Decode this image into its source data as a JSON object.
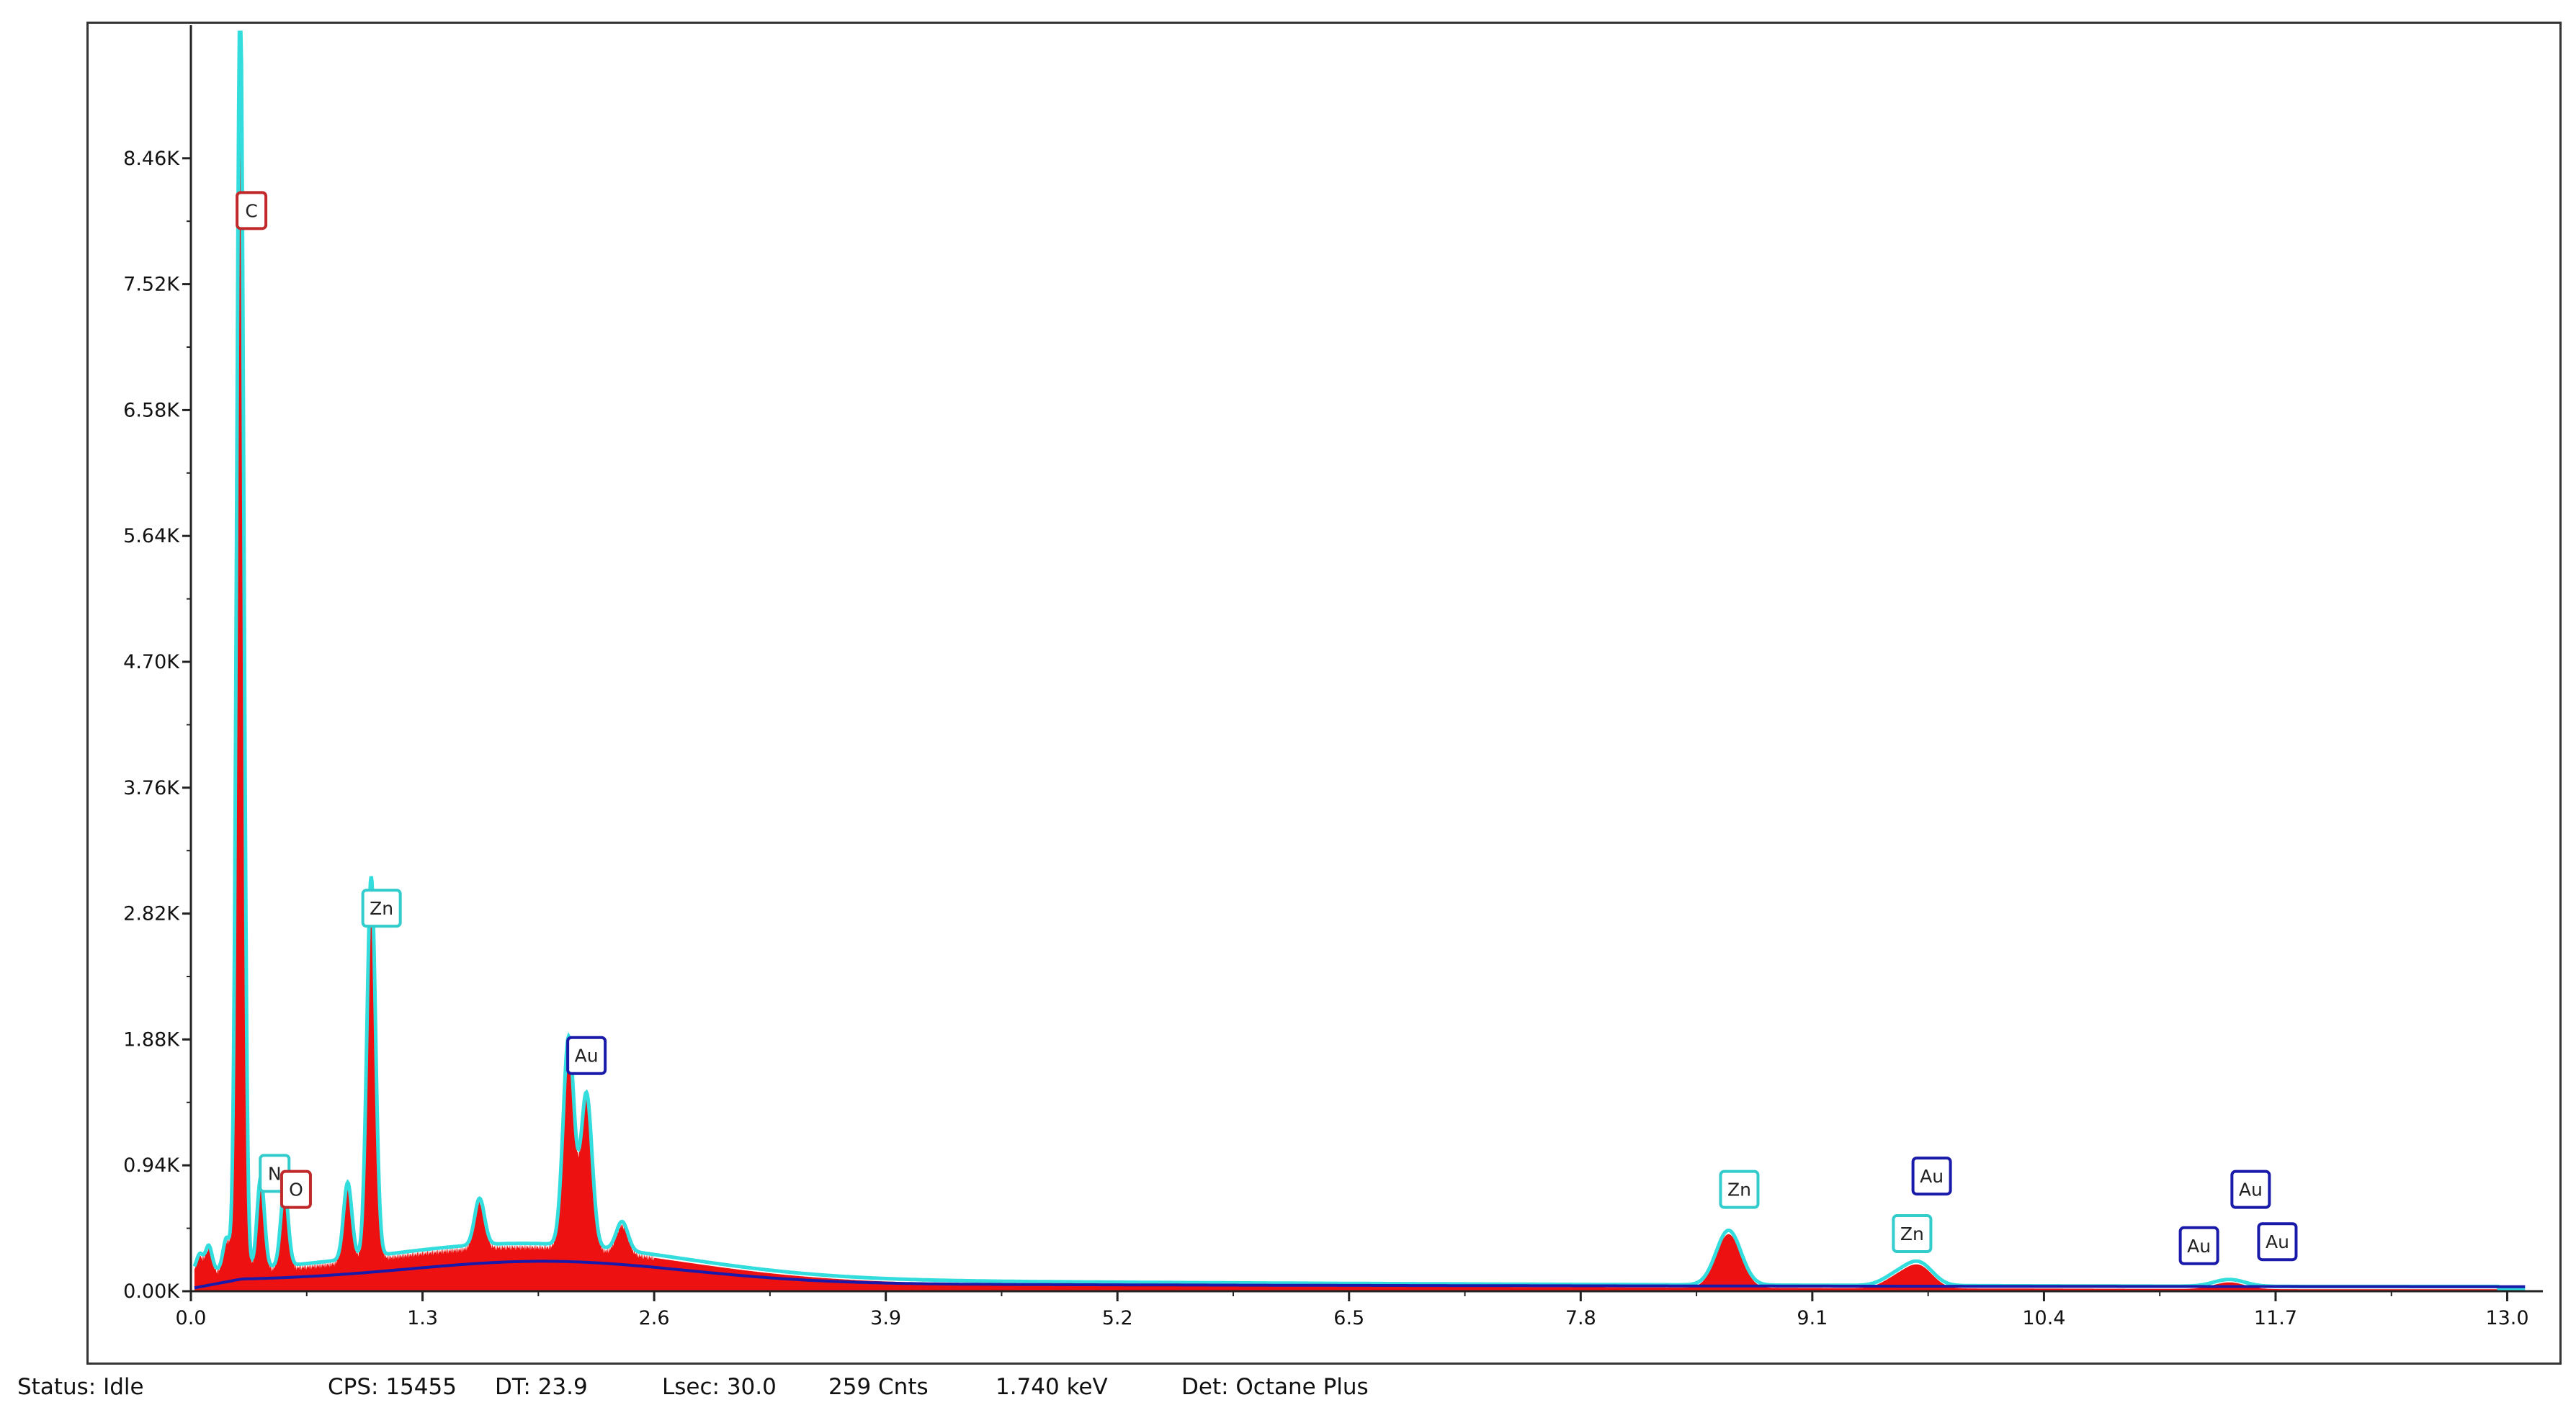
{
  "chart_data": {
    "type": "area",
    "x_ticks": [
      "0.0",
      "1.3",
      "2.6",
      "3.9",
      "5.2",
      "6.5",
      "7.8",
      "9.1",
      "10.4",
      "11.7",
      "13.0"
    ],
    "y_ticks": [
      "0.00K",
      "0.94K",
      "1.88K",
      "2.82K",
      "3.76K",
      "4.70K",
      "5.64K",
      "6.58K",
      "7.52K",
      "8.46K"
    ],
    "xlim": [
      0,
      13.2
    ],
    "ylim": [
      0,
      9400
    ],
    "grid": false,
    "colors": {
      "spectrum_fill": "#ee1111",
      "fit_line": "#33dddd",
      "background_line": "#1a1aaa"
    },
    "peaks": [
      {
        "x": 0.05,
        "y": 120
      },
      {
        "x": 0.1,
        "y": 180
      },
      {
        "x": 0.2,
        "y": 230
      },
      {
        "x": 0.277,
        "y": 9400
      },
      {
        "x": 0.392,
        "y": 660
      },
      {
        "x": 0.525,
        "y": 560
      },
      {
        "x": 0.88,
        "y": 560
      },
      {
        "x": 1.012,
        "y": 2780
      },
      {
        "x": 1.62,
        "y": 340
      },
      {
        "x": 2.12,
        "y": 1520
      },
      {
        "x": 2.22,
        "y": 1120
      },
      {
        "x": 2.42,
        "y": 210
      },
      {
        "x": 8.63,
        "y": 400
      },
      {
        "x": 9.57,
        "y": 70
      },
      {
        "x": 9.7,
        "y": 160
      },
      {
        "x": 11.44,
        "y": 50
      }
    ],
    "annotations": [
      {
        "label": "C",
        "x": 0.34,
        "y": 8070,
        "color": "#c0282a"
      },
      {
        "label": "N",
        "x": 0.47,
        "y": 880,
        "color": "#33cccc"
      },
      {
        "label": "O",
        "x": 0.59,
        "y": 760,
        "color": "#c0282a"
      },
      {
        "label": "Zn",
        "x": 1.07,
        "y": 2860,
        "color": "#33cccc"
      },
      {
        "label": "Au",
        "x": 2.22,
        "y": 1760,
        "color": "#1a1aaa"
      },
      {
        "label": "Zn",
        "x": 8.69,
        "y": 760,
        "color": "#33cccc"
      },
      {
        "label": "Au",
        "x": 9.77,
        "y": 860,
        "color": "#1a1aaa"
      },
      {
        "label": "Zn",
        "x": 9.66,
        "y": 430,
        "color": "#33cccc"
      },
      {
        "label": "Au",
        "x": 11.56,
        "y": 760,
        "color": "#1a1aaa"
      },
      {
        "label": "Au",
        "x": 11.27,
        "y": 340,
        "color": "#1a1aaa"
      },
      {
        "label": "Au",
        "x": 11.71,
        "y": 370,
        "color": "#1a1aaa"
      }
    ]
  },
  "status": {
    "status": "Status: Idle",
    "cps": "CPS: 15455",
    "dt": "DT: 23.9",
    "lsec": "Lsec: 30.0",
    "cnts": "259 Cnts",
    "kev": "1.740 keV",
    "det": "Det: Octane Plus"
  }
}
